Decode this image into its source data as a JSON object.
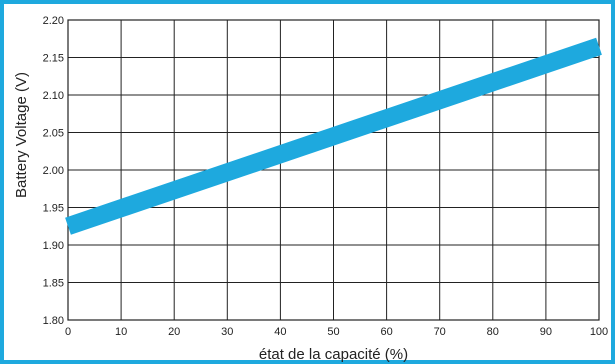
{
  "chart_data": {
    "type": "line",
    "title": "",
    "xlabel": "état de la capacité (%)",
    "ylabel": "Battery Voltage (V)",
    "xlim": [
      0,
      100
    ],
    "ylim": [
      1.8,
      2.2
    ],
    "x_ticks": [
      "0",
      "10",
      "20",
      "30",
      "40",
      "50",
      "60",
      "70",
      "80",
      "90",
      "100"
    ],
    "y_ticks": [
      "1.80",
      "1.85",
      "1.90",
      "1.95",
      "2.00",
      "2.05",
      "2.10",
      "2.15",
      "2.20"
    ],
    "grid": true,
    "legend": "none",
    "series": [
      {
        "x": [
          0,
          100
        ],
        "y": [
          1.925,
          2.165
        ],
        "color": "#1ea9de"
      }
    ]
  },
  "colors": {
    "frame": "#1ea9de",
    "grid": "#222222",
    "series": "#1ea9de"
  }
}
